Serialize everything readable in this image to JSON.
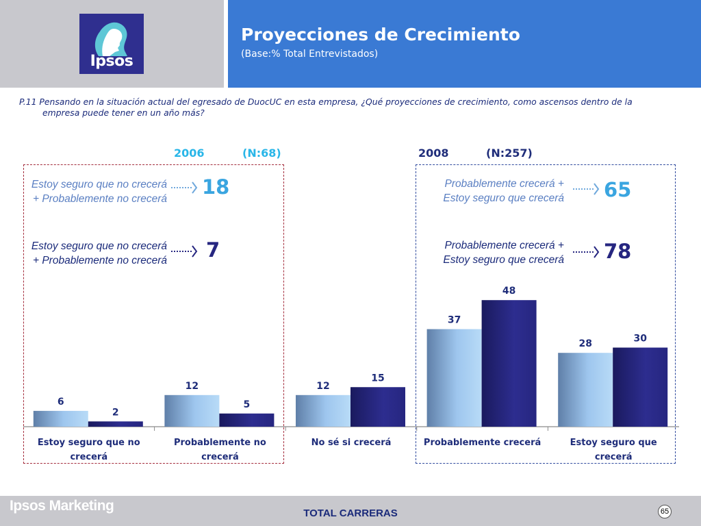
{
  "header": {
    "title": "Proyecciones de Crecimiento",
    "subtitle": "(Base:% Total Entrevistados)",
    "logo_text": "Ipsos"
  },
  "question": {
    "line1": "P.11 Pensando en la situación actual del egresado de DuocUC en  esta empresa, ¿Qué  proyecciones de crecimiento, como ascensos dentro de la",
    "line2": "empresa  puede tener en un año más?"
  },
  "groups": {
    "g2006": {
      "year": "2006",
      "n": "(N:68)"
    },
    "g2008": {
      "year": "2008",
      "n": "(N:257)"
    }
  },
  "summaries": [
    {
      "text": "Estoy seguro que no crecerá + Probablemente no crecerá",
      "value": "18"
    },
    {
      "text": "Estoy seguro que no crecerá + Probablemente no crecerá",
      "value": "7"
    },
    {
      "text": "Probablemente crecerá + Estoy seguro que crecerá",
      "value": "65"
    },
    {
      "text": "Probablemente crecerá + Estoy seguro que crecerá",
      "value": "78"
    }
  ],
  "colors": {
    "header_blue": "#3a7ad4",
    "header_gray": "#c8c8cd",
    "series_2006": "#9ec6ee",
    "series_2008": "#262680",
    "year_2006": "#29b6e8",
    "year_2008": "#1f2d7a",
    "summary_light_text": "#5a7fc2",
    "summary_dark_text": "#1a2a7a",
    "summary_light_num": "#3aa5e0",
    "summary_dark_num": "#262680"
  },
  "chart_data": {
    "type": "bar",
    "categories": [
      "Estoy seguro que no crecerá",
      "Probablemente no crecerá",
      "No sé si crecerá",
      "Probablemente crecerá",
      "Estoy seguro que crecerá"
    ],
    "series": [
      {
        "name": "2006",
        "values": [
          6,
          12,
          12,
          37,
          28
        ]
      },
      {
        "name": "2008",
        "values": [
          2,
          5,
          15,
          48,
          30
        ]
      }
    ],
    "ylim": [
      0,
      50
    ],
    "grid": false,
    "legend": "none"
  },
  "footer": {
    "brand": "Ipsos Marketing",
    "center": "TOTAL CARRERAS",
    "page_number": "65"
  }
}
